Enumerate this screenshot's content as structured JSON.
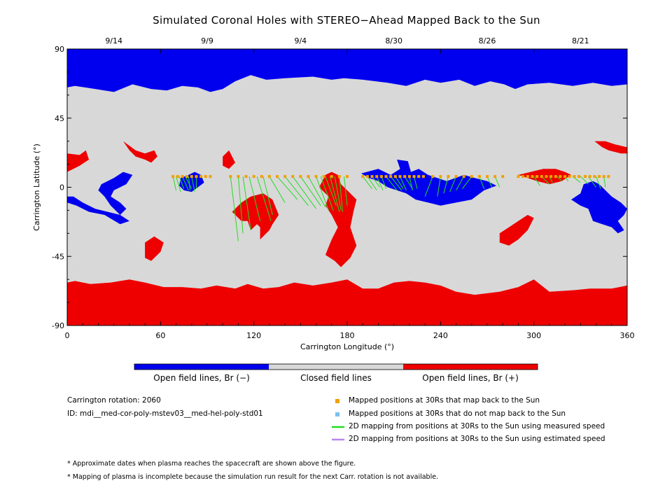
{
  "chart_data": {
    "type": "heatmap",
    "title": "Simulated Coronal Holes with STEREO−Ahead Mapped Back to the Sun",
    "xlabel": "Carrington Longitude (°)",
    "ylabel": "Carrington Latitude (°)",
    "xlim": [
      0,
      360
    ],
    "ylim": [
      -90,
      90
    ],
    "xticks": [
      0,
      60,
      120,
      180,
      240,
      300,
      360
    ],
    "yticks": [
      -90,
      -45,
      0,
      45,
      90
    ],
    "top_axis_dates": [
      {
        "label": "9/14",
        "lon": 30
      },
      {
        "label": "9/9",
        "lon": 90
      },
      {
        "label": "9/4",
        "lon": 150
      },
      {
        "label": "8/30",
        "lon": 210
      },
      {
        "label": "8/26",
        "lon": 270
      },
      {
        "label": "8/21",
        "lon": 330
      }
    ],
    "colorbar": [
      {
        "label": "Open field lines, Br (−)",
        "color": "#0000ee"
      },
      {
        "label": "Closed field lines",
        "color": "#d8d8d8"
      },
      {
        "label": "Open field lines, Br (+)",
        "color": "#ee0000"
      }
    ],
    "mapped_positions_lat": 7,
    "mapped_positions_lon": [
      68,
      71,
      74,
      77,
      80,
      83,
      86,
      89,
      92,
      105,
      110,
      115,
      120,
      125,
      130,
      135,
      140,
      145,
      150,
      155,
      160,
      165,
      170,
      175,
      180,
      190,
      193,
      196,
      199,
      202,
      205,
      208,
      211,
      214,
      217,
      220,
      223,
      226,
      229,
      235,
      240,
      245,
      250,
      255,
      260,
      265,
      270,
      275,
      280,
      290,
      293,
      296,
      299,
      302,
      305,
      308,
      311,
      314,
      317,
      320,
      323,
      326,
      329,
      333,
      336,
      339,
      342,
      345,
      348
    ],
    "mapping_lines_measured": [
      [
        68,
        7,
        70,
        -2
      ],
      [
        70,
        7,
        73,
        -3
      ],
      [
        72,
        7,
        75,
        -1
      ],
      [
        74,
        7,
        78,
        -2
      ],
      [
        76,
        7,
        80,
        -1
      ],
      [
        78,
        7,
        79,
        -2
      ],
      [
        80,
        7,
        82,
        -3
      ],
      [
        83,
        7,
        83,
        -1
      ],
      [
        105,
        7,
        110,
        -35
      ],
      [
        110,
        7,
        113,
        -30
      ],
      [
        113,
        7,
        118,
        -28
      ],
      [
        117,
        7,
        124,
        -22
      ],
      [
        122,
        7,
        131,
        -22
      ],
      [
        126,
        7,
        132,
        -18
      ],
      [
        130,
        7,
        140,
        -10
      ],
      [
        135,
        7,
        148,
        -8
      ],
      [
        140,
        7,
        155,
        -12
      ],
      [
        145,
        7,
        160,
        -14
      ],
      [
        150,
        7,
        163,
        -12
      ],
      [
        155,
        7,
        166,
        -13
      ],
      [
        160,
        7,
        168,
        -15
      ],
      [
        163,
        7,
        171,
        -15
      ],
      [
        166,
        7,
        173,
        -12
      ],
      [
        169,
        7,
        175,
        -16
      ],
      [
        172,
        7,
        176,
        -15
      ],
      [
        175,
        7,
        177,
        -16
      ],
      [
        178,
        7,
        180,
        -12
      ],
      [
        190,
        7,
        196,
        -1
      ],
      [
        193,
        7,
        199,
        -2
      ],
      [
        196,
        7,
        201,
        0
      ],
      [
        199,
        7,
        203,
        -2
      ],
      [
        202,
        7,
        205,
        -1
      ],
      [
        205,
        7,
        212,
        -2
      ],
      [
        208,
        7,
        215,
        -2
      ],
      [
        211,
        7,
        216,
        -1
      ],
      [
        214,
        7,
        218,
        -2
      ],
      [
        217,
        7,
        222,
        -1
      ],
      [
        220,
        7,
        222,
        -2
      ],
      [
        223,
        7,
        225,
        -1
      ],
      [
        235,
        7,
        230,
        -6
      ],
      [
        240,
        7,
        238,
        -6
      ],
      [
        245,
        7,
        242,
        -4
      ],
      [
        250,
        7,
        246,
        -3
      ],
      [
        255,
        7,
        250,
        -2
      ],
      [
        260,
        7,
        254,
        -1
      ],
      [
        265,
        7,
        268,
        -1
      ],
      [
        270,
        7,
        273,
        0
      ],
      [
        275,
        7,
        278,
        0
      ],
      [
        300,
        7,
        304,
        1
      ],
      [
        305,
        7,
        310,
        2
      ],
      [
        310,
        7,
        312,
        3
      ],
      [
        315,
        7,
        318,
        4
      ],
      [
        320,
        7,
        322,
        4
      ],
      [
        325,
        7,
        330,
        3
      ],
      [
        330,
        7,
        335,
        2
      ],
      [
        335,
        7,
        340,
        0
      ],
      [
        340,
        7,
        343,
        -1
      ],
      [
        345,
        7,
        346,
        0
      ]
    ]
  },
  "info": {
    "rotation": "Carrington rotation: 2060",
    "id": "ID: mdi__med-cor-poly-mstev03__med-hel-poly-std01"
  },
  "legend": [
    {
      "label": "Mapped positions at 30Rs that map back to the Sun",
      "symbol": "square",
      "color": "#f0a000"
    },
    {
      "label": "Mapped positions at 30Rs that do not map back to the Sun",
      "symbol": "square",
      "color": "#7fbfef"
    },
    {
      "label": "2D mapping from positions at 30Rs to the Sun using measured speed",
      "symbol": "line",
      "color": "#22dd22"
    },
    {
      "label": "2D mapping from positions at 30Rs to the Sun using estimated speed",
      "symbol": "line",
      "color": "#b788f0"
    }
  ],
  "notes": [
    "* Approximate dates when plasma reaches the spacecraft are shown above the figure.",
    "* Mapping of plasma is incomplete because the simulation run result for the next Carr. rotation is not available."
  ]
}
